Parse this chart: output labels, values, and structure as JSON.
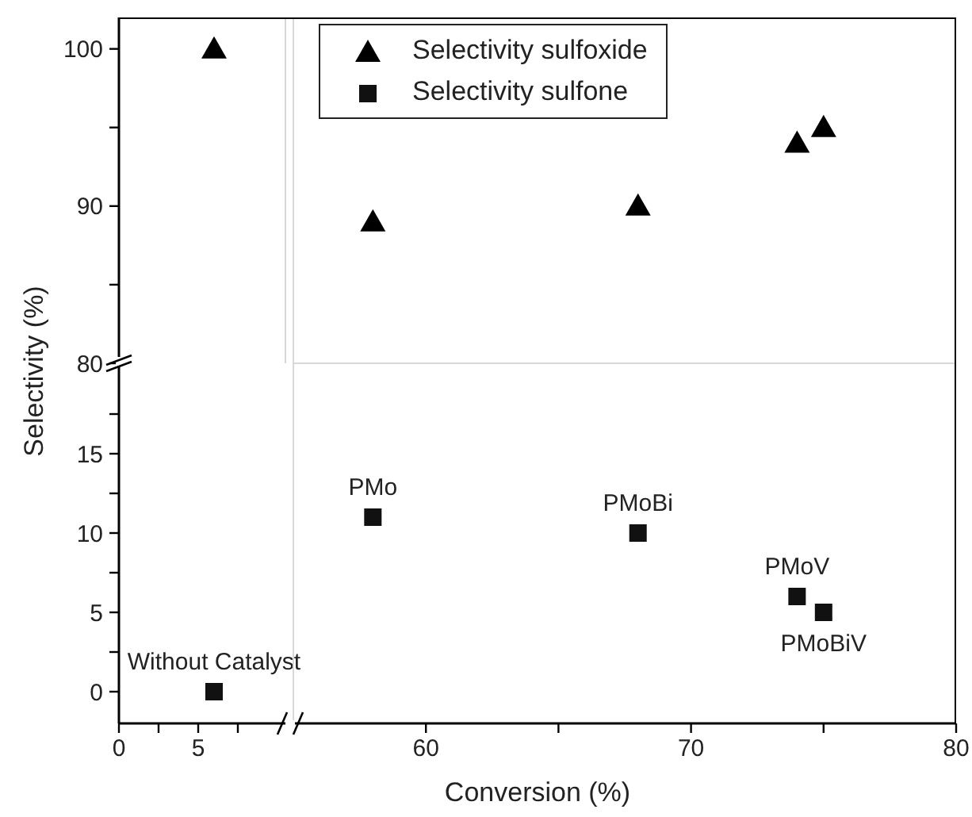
{
  "chart_data": [
    {
      "type": "scatter",
      "xlim": [
        0,
        10.5
      ],
      "ylim": [
        80,
        102
      ],
      "yticks": [
        80,
        {
          "value": 85,
          "label": null
        },
        90,
        {
          "value": 95,
          "label": null
        },
        100
      ],
      "tick_labels": "y",
      "series": [
        {
          "color": "#000000",
          "marker": "triangle",
          "x": [
            6
          ],
          "values": [
            100
          ]
        }
      ]
    },
    {
      "type": "scatter",
      "xlim": [
        55,
        80
      ],
      "ylim": [
        80,
        102
      ],
      "tick_labels": false,
      "legend": "top",
      "series": [
        {
          "name": "Selectivity sulfoxide",
          "color": "#000000",
          "marker": "triangle",
          "x": [
            58,
            68,
            74,
            75
          ],
          "values": [
            89,
            90,
            94,
            95
          ]
        }
      ]
    },
    {
      "type": "scatter",
      "xlim": [
        0,
        10.5
      ],
      "ylim": [
        -2,
        20.7
      ],
      "xticks": [
        0,
        {
          "value": 2.5,
          "label": null
        },
        5,
        {
          "value": 7.5,
          "label": null
        }
      ],
      "yticks": [
        0,
        {
          "value": 2.5,
          "label": null
        },
        5,
        {
          "value": 7.5,
          "label": null
        },
        10,
        {
          "value": 12.5,
          "label": null
        },
        15,
        {
          "value": 17.5,
          "label": null
        }
      ],
      "ylabel": "Selectivity (%)",
      "series": [
        {
          "color": "#111111",
          "marker": "square",
          "x": [
            6
          ],
          "values": [
            0
          ]
        }
      ],
      "annotations": [
        {
          "text": "Without Catalyst",
          "x": 6,
          "y": 0
        }
      ]
    },
    {
      "type": "scatter",
      "xlim": [
        55,
        80
      ],
      "ylim": [
        -2,
        20.7
      ],
      "xticks": [
        60,
        {
          "value": 65,
          "label": null
        },
        70,
        {
          "value": 75,
          "label": null
        },
        80
      ],
      "tick_labels": "x",
      "xlabel": "Conversion (%)",
      "series": [
        {
          "name": "Selectivity sulfone",
          "color": "#111111",
          "marker": "square",
          "x": [
            58,
            68,
            74,
            75
          ],
          "values": [
            11,
            10,
            6,
            5
          ]
        }
      ],
      "annotations": [
        {
          "text": "PMo",
          "x": 58,
          "y": 11
        },
        {
          "text": "PMoBi",
          "x": 68,
          "y": 10
        },
        {
          "text": "PMoV",
          "x": 74,
          "y": 6
        },
        {
          "text": "PMoBiV",
          "x": 75,
          "y": 5
        }
      ]
    }
  ]
}
